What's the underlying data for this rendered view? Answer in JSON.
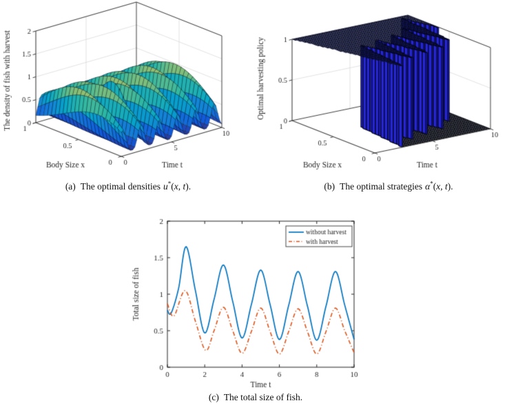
{
  "figure": {
    "background": "#ffffff",
    "captions": {
      "a": {
        "label": "(a)",
        "text": "The optimal densities",
        "math": {
          "var": "u",
          "star": "*",
          "open": "(",
          "arg1": "x",
          "sep": ", ",
          "arg2": "t",
          "close": ")."
        }
      },
      "b": {
        "label": "(b)",
        "text": "The optimal strategies",
        "math": {
          "var": "α",
          "star": "*",
          "open": "(",
          "arg1": "x",
          "sep": ", ",
          "arg2": "t",
          "close": ")."
        }
      },
      "c": {
        "label": "(c)",
        "text": "The total size of fish."
      }
    }
  },
  "chart_data": [
    {
      "id": "a",
      "type": "surface3d",
      "zlabel": "The density of fish with harvest",
      "xlabel": "Body Size x",
      "ylabel": "Time t",
      "x_ticks": [
        0,
        0.5,
        1
      ],
      "t_ticks": [
        0,
        5,
        10
      ],
      "z_ticks": [
        0,
        0.5,
        1,
        1.5,
        2
      ],
      "x_range": [
        0,
        1
      ],
      "t_range": [
        0,
        10
      ],
      "z_range": [
        0,
        2
      ],
      "description": "Periodic traveling density waves in time (period ~1.8) with a hump across body size; sharp high yellow ridge near t=2.8, values ~0 to ~1.45",
      "surface_model": {
        "base_offset": 0.07,
        "amp_edge": 0.5,
        "amp_mid": 1.0,
        "wave_period": 1.82,
        "wave_phase": 0.15,
        "wave_x_drift": 0.4,
        "wave_sharpness": 1.6,
        "spike": {
          "t_center": 2.75,
          "t_width": 0.16,
          "x_drift": 0.4,
          "height": 1.15
        },
        "z_clamp": 1.5,
        "color_scale_max": 1.65
      },
      "colormap": [
        "#352a87",
        "#0f5cdd",
        "#1481d6",
        "#06a4ca",
        "#2eb7a4",
        "#87bf77",
        "#d1bb59",
        "#fec832",
        "#f9fb0e"
      ],
      "mesh_edge_color": "rgba(8,10,20,0.65)",
      "axis_color": "#3c3c3c",
      "grid_color": "#d4d4d4",
      "text_color": "#262626",
      "grid": {
        "nx": 22,
        "nt": 52
      }
    },
    {
      "id": "b",
      "type": "surface3d",
      "zlabel": "Optimal harvesting policy",
      "xlabel": "Body Size x",
      "ylabel": "Time t",
      "x_ticks": [
        0,
        0.5,
        1
      ],
      "t_ticks": [
        0,
        5,
        10
      ],
      "z_ticks": [
        0,
        0.5,
        1
      ],
      "x_range": [
        0,
        1
      ],
      "t_range": [
        0,
        10
      ],
      "z_range": [
        0,
        1
      ],
      "description": "Bang-bang harvesting policy: value 1 on black plateau, 0 on floor; blue striped vertical walls at switching times",
      "policy_model": {
        "initial_boundary": {
          "t_start": 0,
          "t_end": 2.3
        },
        "walls": [
          {
            "t_front": 2.4,
            "t_back": 3.0,
            "height": 0.62
          },
          {
            "t_front": 4.0,
            "t_back": 4.6,
            "height": 0.66
          },
          {
            "t_front": 5.6,
            "t_back": 6.2,
            "height": 0.7
          },
          {
            "t_front": 7.2,
            "t_back": 7.8,
            "height": 0.76
          },
          {
            "t_front": 8.6,
            "t_back": 9.2,
            "height": 0.97
          }
        ],
        "decay_rate": 0.45
      },
      "face_color": "#050507",
      "floor_color": "#020203",
      "wall_fill_color": "#2426d8",
      "wall_edge_color": "#02020e",
      "top_edge_color": "rgba(30,40,140,0.35)",
      "axis_color": "#3c3c3c",
      "grid_color": "#d4d4d4",
      "text_color": "#262626",
      "grid": {
        "nx": 24,
        "nt": 84
      }
    },
    {
      "id": "c",
      "type": "line",
      "xlabel": "Time t",
      "ylabel": "Total size of fish",
      "x_ticks": [
        0,
        2,
        4,
        6,
        8,
        10
      ],
      "y_ticks": [
        0,
        0.5,
        1,
        1.5,
        2
      ],
      "x_range": [
        0,
        10
      ],
      "y_range": [
        0,
        2
      ],
      "grid": false,
      "legend": {
        "position": "top-right"
      },
      "axis_color": "#222222",
      "text_color": "#262626",
      "series": [
        {
          "name": "without harvest",
          "color": "#0072bd",
          "style": "solid",
          "width": 1.7,
          "points": [
            [
              0,
              0.78
            ],
            [
              0.2,
              0.74
            ],
            [
              0.6,
              1.08
            ],
            [
              1,
              1.65
            ],
            [
              1.5,
              1.05
            ],
            [
              2,
              0.47
            ],
            [
              2.5,
              0.93
            ],
            [
              3,
              1.4
            ],
            [
              3.5,
              0.9
            ],
            [
              4,
              0.4
            ],
            [
              4.5,
              0.86
            ],
            [
              5,
              1.33
            ],
            [
              5.5,
              0.86
            ],
            [
              6,
              0.38
            ],
            [
              6.5,
              0.85
            ],
            [
              7,
              1.31
            ],
            [
              7.5,
              0.84
            ],
            [
              8,
              0.37
            ],
            [
              8.5,
              0.84
            ],
            [
              9,
              1.31
            ],
            [
              9.5,
              0.85
            ],
            [
              10,
              0.38
            ]
          ]
        },
        {
          "name": "with harvest",
          "color": "#d95319",
          "style": "dashdot",
          "width": 1.6,
          "points": [
            [
              0,
              0.87
            ],
            [
              0.35,
              0.7
            ],
            [
              0.95,
              1.05
            ],
            [
              1.5,
              0.63
            ],
            [
              2.05,
              0.23
            ],
            [
              2.5,
              0.5
            ],
            [
              3,
              0.82
            ],
            [
              3.5,
              0.5
            ],
            [
              4,
              0.19
            ],
            [
              4.5,
              0.49
            ],
            [
              5,
              0.81
            ],
            [
              5.5,
              0.49
            ],
            [
              6,
              0.18
            ],
            [
              6.5,
              0.49
            ],
            [
              7,
              0.8
            ],
            [
              7.5,
              0.49
            ],
            [
              8,
              0.18
            ],
            [
              8.5,
              0.49
            ],
            [
              9,
              0.81
            ],
            [
              9.5,
              0.5
            ],
            [
              10,
              0.2
            ]
          ]
        }
      ]
    }
  ]
}
